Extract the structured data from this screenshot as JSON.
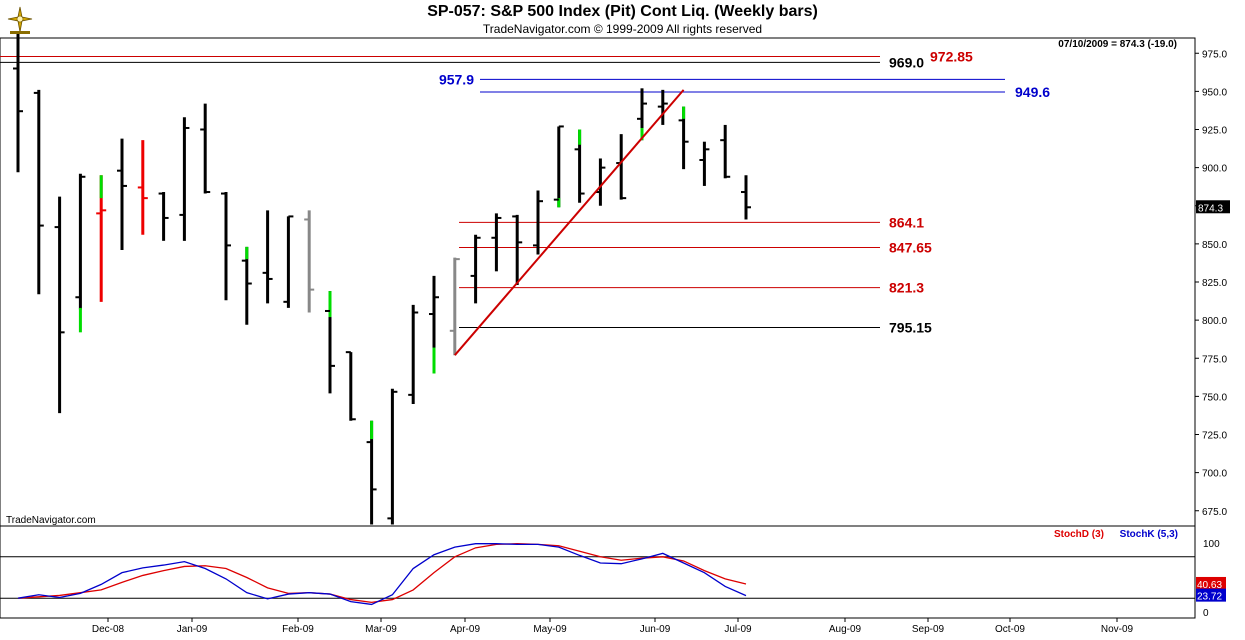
{
  "header": {
    "title": "SP-057:  S&P 500 Index (Pit) Cont Liq.  (Weekly bars)",
    "subtitle": "TradeNavigator.com © 1999-2009 All rights reserved"
  },
  "watermark": "TradeNavigator.com",
  "quote_line": "07/10/2009 = 874.3 (-19.0)",
  "colors": {
    "up": "#00dd00",
    "down": "#ee0000",
    "neutral": "#000000",
    "gray": "#888888",
    "stoch_d": "#dd0000",
    "stoch_k": "#0000cc",
    "level_red": "#cc0000",
    "level_blue": "#0000cc",
    "level_black": "#000000"
  },
  "chart_data": [
    {
      "type": "bar",
      "subtype": "ohlc",
      "title": "SP-057:  S&P 500 Index (Pit) Cont Liq.  (Weekly bars)",
      "ylim": [
        665,
        985
      ],
      "y_ticks": [
        675,
        700,
        725,
        750,
        775,
        800,
        825,
        850,
        875,
        900,
        925,
        950,
        975
      ],
      "y_tick_labels": [
        "675.0",
        "700.0",
        "725.0",
        "750.0",
        "775.0",
        "800.0",
        "825.0",
        "850.0",
        "875.0",
        "900.0",
        "925.0",
        "950.0",
        "975.0"
      ],
      "x_tick_labels": [
        "Dec-08",
        "Jan-09",
        "Feb-09",
        "Mar-09",
        "Apr-09",
        "May-09",
        "Jun-09",
        "Jul-09",
        "Aug-09",
        "Sep-09",
        "Oct-09",
        "Nov-09"
      ],
      "last_price_label": "874.3",
      "bars": [
        {
          "h": 988,
          "l": 897,
          "o": 965,
          "c": 937,
          "color": "neutral"
        },
        {
          "h": 951,
          "l": 817,
          "o": 949,
          "c": 862,
          "color": "neutral"
        },
        {
          "h": 881,
          "l": 739,
          "o": 861,
          "c": 792,
          "color": "neutral"
        },
        {
          "h": 896,
          "l": 807,
          "o": 815,
          "c": 894,
          "color": "neutral",
          "tint": "up",
          "tint_from": 792,
          "tint_to": 808
        },
        {
          "h": 895,
          "l": 812,
          "o": 870,
          "c": 872,
          "color": "down",
          "tint": "up",
          "tint_from": 880,
          "tint_to": 895
        },
        {
          "h": 919,
          "l": 846,
          "o": 898,
          "c": 888,
          "color": "neutral"
        },
        {
          "h": 918,
          "l": 856,
          "o": 887,
          "c": 880,
          "color": "down"
        },
        {
          "h": 884,
          "l": 852,
          "o": 883,
          "c": 867,
          "color": "neutral"
        },
        {
          "h": 933,
          "l": 852,
          "o": 869,
          "c": 926,
          "color": "neutral"
        },
        {
          "h": 942,
          "l": 883,
          "o": 925,
          "c": 884,
          "color": "neutral"
        },
        {
          "h": 884,
          "l": 813,
          "o": 883,
          "c": 849,
          "color": "neutral"
        },
        {
          "h": 848,
          "l": 797,
          "o": 839,
          "c": 824,
          "color": "neutral",
          "tint": "up",
          "tint_from": 840,
          "tint_to": 848
        },
        {
          "h": 872,
          "l": 811,
          "o": 831,
          "c": 827,
          "color": "neutral"
        },
        {
          "h": 868,
          "l": 808,
          "o": 812,
          "c": 868,
          "color": "neutral"
        },
        {
          "h": 872,
          "l": 805,
          "o": 866,
          "c": 820,
          "color": "gray"
        },
        {
          "h": 819,
          "l": 752,
          "o": 806,
          "c": 770,
          "color": "neutral",
          "tint": "up",
          "tint_from": 802,
          "tint_to": 819
        },
        {
          "h": 779,
          "l": 734,
          "o": 779,
          "c": 735,
          "color": "neutral"
        },
        {
          "h": 734,
          "l": 666,
          "o": 720,
          "c": 689,
          "color": "neutral",
          "tint": "up",
          "tint_from": 722,
          "tint_to": 734
        },
        {
          "h": 755,
          "l": 666,
          "o": 670,
          "c": 753,
          "color": "neutral"
        },
        {
          "h": 810,
          "l": 745,
          "o": 751,
          "c": 805,
          "color": "neutral"
        },
        {
          "h": 829,
          "l": 765,
          "o": 804,
          "c": 815,
          "color": "neutral",
          "tint": "up",
          "tint_from": 765,
          "tint_to": 782
        },
        {
          "h": 841,
          "l": 777,
          "o": 793,
          "c": 840,
          "color": "gray"
        },
        {
          "h": 856,
          "l": 811,
          "o": 829,
          "c": 854,
          "color": "neutral"
        },
        {
          "h": 870,
          "l": 832,
          "o": 854,
          "c": 867,
          "color": "neutral"
        },
        {
          "h": 869,
          "l": 823,
          "o": 868,
          "c": 851,
          "color": "neutral"
        },
        {
          "h": 885,
          "l": 843,
          "o": 849,
          "c": 878,
          "color": "neutral"
        },
        {
          "h": 927,
          "l": 874,
          "o": 879,
          "c": 927,
          "color": "neutral",
          "tint": "up",
          "tint_from": 874,
          "tint_to": 880
        },
        {
          "h": 925,
          "l": 877,
          "o": 912,
          "c": 883,
          "color": "neutral",
          "tint": "up",
          "tint_from": 915,
          "tint_to": 925
        },
        {
          "h": 906,
          "l": 875,
          "o": 884,
          "c": 900,
          "color": "neutral"
        },
        {
          "h": 922,
          "l": 879,
          "o": 903,
          "c": 880,
          "color": "neutral"
        },
        {
          "h": 952,
          "l": 918,
          "o": 932,
          "c": 942,
          "color": "neutral",
          "tint": "up",
          "tint_from": 918,
          "tint_to": 926
        },
        {
          "h": 951,
          "l": 928,
          "o": 940,
          "c": 942,
          "color": "neutral"
        },
        {
          "h": 940,
          "l": 899,
          "o": 931,
          "c": 917,
          "color": "neutral",
          "tint": "up",
          "tint_from": 932,
          "tint_to": 940
        },
        {
          "h": 917,
          "l": 888,
          "o": 905,
          "c": 912,
          "color": "neutral"
        },
        {
          "h": 928,
          "l": 893,
          "o": 918,
          "c": 894,
          "color": "neutral"
        },
        {
          "h": 895,
          "l": 866,
          "o": 884,
          "c": 874,
          "color": "neutral"
        }
      ],
      "levels": [
        {
          "value": 972.85,
          "label": "972.85",
          "color": "level_red"
        },
        {
          "value": 969.0,
          "label": "969.0",
          "color": "level_black"
        },
        {
          "value": 957.9,
          "label": "957.9",
          "color": "level_blue"
        },
        {
          "value": 949.6,
          "label": "949.6",
          "color": "level_blue"
        },
        {
          "value": 864.1,
          "label": "864.1",
          "color": "level_red"
        },
        {
          "value": 847.65,
          "label": "847.65",
          "color": "level_red"
        },
        {
          "value": 821.3,
          "label": "821.3",
          "color": "level_red"
        },
        {
          "value": 795.15,
          "label": "795.15",
          "color": "level_black"
        }
      ],
      "trendline": {
        "from": [
          21,
          777
        ],
        "to": [
          32,
          951
        ],
        "color": "level_red"
      }
    },
    {
      "type": "line",
      "subtype": "stochastic",
      "ylim": [
        0,
        100
      ],
      "y_tick_labels": [
        "100",
        "0"
      ],
      "guides": [
        80,
        20
      ],
      "series": [
        {
          "name": "StochD (3)",
          "color": "stoch_d",
          "last_label": "40.63",
          "values": [
            20,
            22,
            24,
            28,
            32,
            43,
            53,
            60,
            66,
            67,
            63,
            50,
            35,
            27,
            28,
            26,
            18,
            14,
            18,
            32,
            57,
            80,
            93,
            98,
            99,
            98,
            96,
            88,
            80,
            75,
            78,
            80,
            74,
            60,
            48,
            40.63
          ]
        },
        {
          "name": "StochK (5,3)",
          "color": "stoch_k",
          "last_label": "23.72",
          "values": [
            20,
            25,
            21,
            27,
            40,
            57,
            64,
            68,
            73,
            63,
            48,
            28,
            19,
            26,
            28,
            26,
            15,
            11,
            25,
            63,
            83,
            94,
            99,
            99,
            98,
            98,
            94,
            82,
            71,
            70,
            77,
            85,
            71,
            57,
            37,
            23.72
          ]
        }
      ]
    }
  ]
}
